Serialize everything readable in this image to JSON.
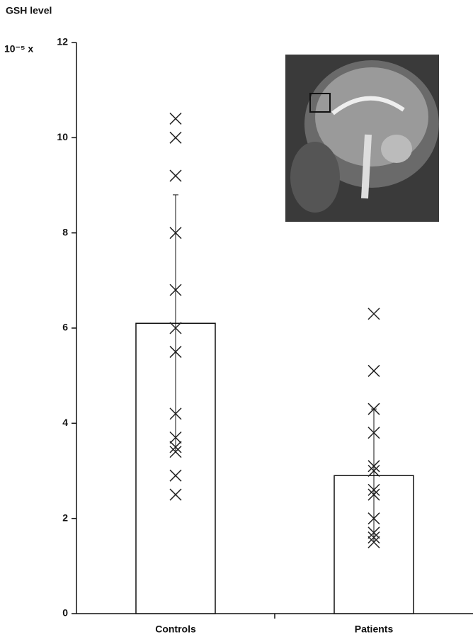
{
  "chart_data": {
    "type": "bar",
    "title": "GSH level",
    "ylabel_prefix": "10⁻⁵ x",
    "categories": [
      "Controls",
      "Patients"
    ],
    "series": [
      {
        "values": [
          6.1,
          2.9
        ],
        "errors": [
          2.7,
          1.4
        ],
        "color": "#ffffff"
      }
    ],
    "points": [
      {
        "values": [
          10.4,
          10.0,
          9.2,
          8.0,
          6.8,
          6.0,
          5.5,
          4.2,
          3.7,
          3.5,
          3.4,
          2.9,
          2.5
        ]
      },
      {
        "values": [
          6.3,
          5.1,
          4.3,
          3.8,
          3.1,
          3.0,
          2.6,
          2.5,
          2.0,
          1.7,
          1.6,
          1.5
        ]
      }
    ],
    "marker_color": "#222222",
    "ylim": [
      0,
      12
    ],
    "yticks": [
      0,
      2,
      4,
      6,
      8,
      10,
      12
    ]
  }
}
